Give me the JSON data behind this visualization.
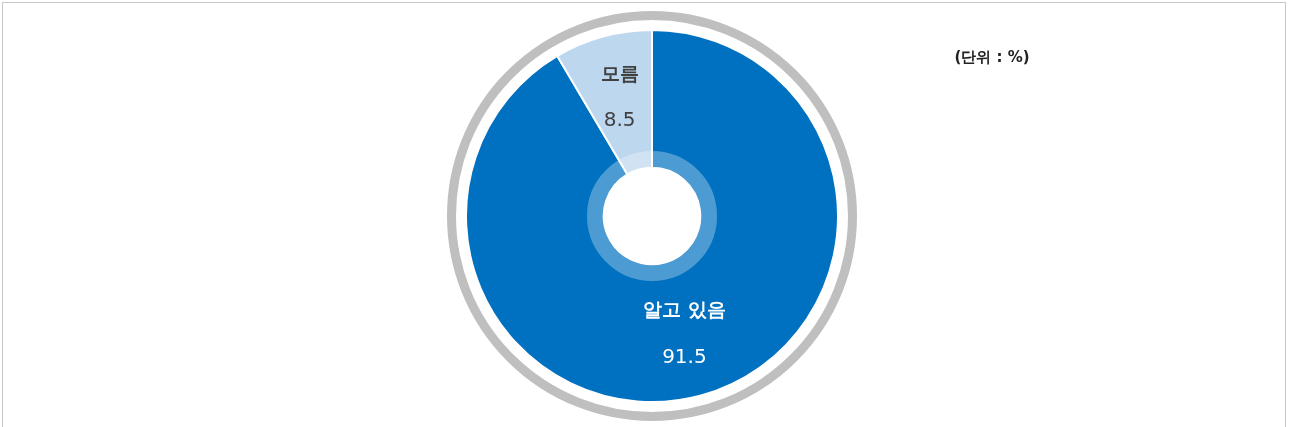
{
  "chart_data": {
    "type": "donut",
    "categories": [
      "알고 있음",
      "모름"
    ],
    "values": [
      91.5,
      8.5
    ],
    "colors": [
      "#0070c0",
      "#bdd7ee"
    ],
    "data_labels": true,
    "legend": false,
    "annotations": [
      "(단위 : %)"
    ]
  }
}
